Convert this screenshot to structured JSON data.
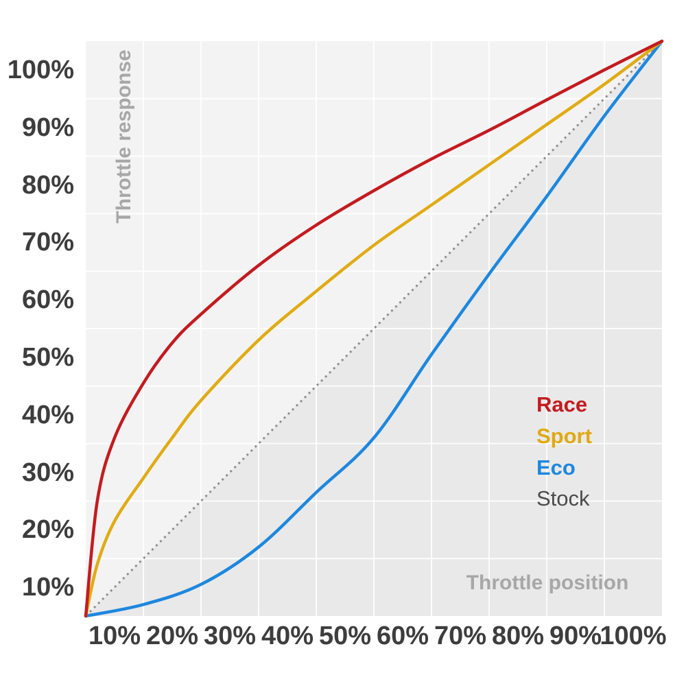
{
  "chart": {
    "x_axis_title": "Throttle position",
    "y_axis_title": "Throttle response",
    "x_tick_labels": [
      "10%",
      "20%",
      "30%",
      "40%",
      "50%",
      "60%",
      "70%",
      "80%",
      "90%",
      "100%"
    ],
    "y_tick_labels": [
      "10%",
      "20%",
      "30%",
      "40%",
      "50%",
      "60%",
      "70%",
      "80%",
      "90%",
      "100%"
    ],
    "colors": {
      "plot_background": "#f3f3f3",
      "under_stock_fill": "#e9e9e9",
      "gridline": "rgba(255,255,255,0.85)",
      "tick_text": "#3d3d3d",
      "axis_title_text": "#a7a7a7"
    }
  },
  "chart_data": {
    "type": "line",
    "title": "",
    "xlabel": "Throttle position",
    "ylabel": "Throttle response",
    "x_range": [
      0,
      100
    ],
    "y_range": [
      0,
      100
    ],
    "grid": true,
    "legend_position": "middle-right",
    "x_ticks": [
      "10%",
      "20%",
      "30%",
      "40%",
      "50%",
      "60%",
      "70%",
      "80%",
      "90%",
      "100%"
    ],
    "y_ticks": [
      "10%",
      "20%",
      "30%",
      "40%",
      "50%",
      "60%",
      "70%",
      "80%",
      "90%",
      "100%"
    ],
    "series": [
      {
        "name": "Race",
        "color": "#c31b20",
        "text_color": "#c31b20",
        "style": "solid",
        "label_bold": true,
        "points": [
          [
            0,
            0
          ],
          [
            2,
            20
          ],
          [
            5,
            31
          ],
          [
            10,
            40.5
          ],
          [
            15,
            47.5
          ],
          [
            20,
            52.5
          ],
          [
            30,
            61
          ],
          [
            40,
            68
          ],
          [
            50,
            74
          ],
          [
            60,
            79.5
          ],
          [
            70,
            84.5
          ],
          [
            80,
            89.8
          ],
          [
            90,
            95
          ],
          [
            100,
            100
          ]
        ]
      },
      {
        "name": "Sport",
        "color": "#e0ab14",
        "text_color": "#e0a912",
        "style": "solid",
        "label_bold": true,
        "points": [
          [
            0,
            0
          ],
          [
            2,
            9
          ],
          [
            5,
            16.5
          ],
          [
            10,
            24
          ],
          [
            15,
            31
          ],
          [
            20,
            37.5
          ],
          [
            30,
            48
          ],
          [
            40,
            56.5
          ],
          [
            50,
            64.5
          ],
          [
            60,
            71.5
          ],
          [
            70,
            78.5
          ],
          [
            80,
            85.5
          ],
          [
            90,
            92.5
          ],
          [
            100,
            100
          ]
        ]
      },
      {
        "name": "Eco",
        "color": "#1d87de",
        "text_color": "#1d87de",
        "style": "solid",
        "label_bold": true,
        "points": [
          [
            0,
            0
          ],
          [
            10,
            2
          ],
          [
            20,
            5.5
          ],
          [
            30,
            12
          ],
          [
            40,
            21.5
          ],
          [
            50,
            31
          ],
          [
            60,
            45.5
          ],
          [
            70,
            59.5
          ],
          [
            80,
            73
          ],
          [
            90,
            87
          ],
          [
            100,
            100
          ]
        ]
      },
      {
        "name": "Stock",
        "color": "#8f8f8f",
        "text_color": "#4b4b4b",
        "style": "dotted",
        "label_bold": false,
        "points": [
          [
            0,
            0
          ],
          [
            100,
            100
          ]
        ]
      }
    ]
  }
}
